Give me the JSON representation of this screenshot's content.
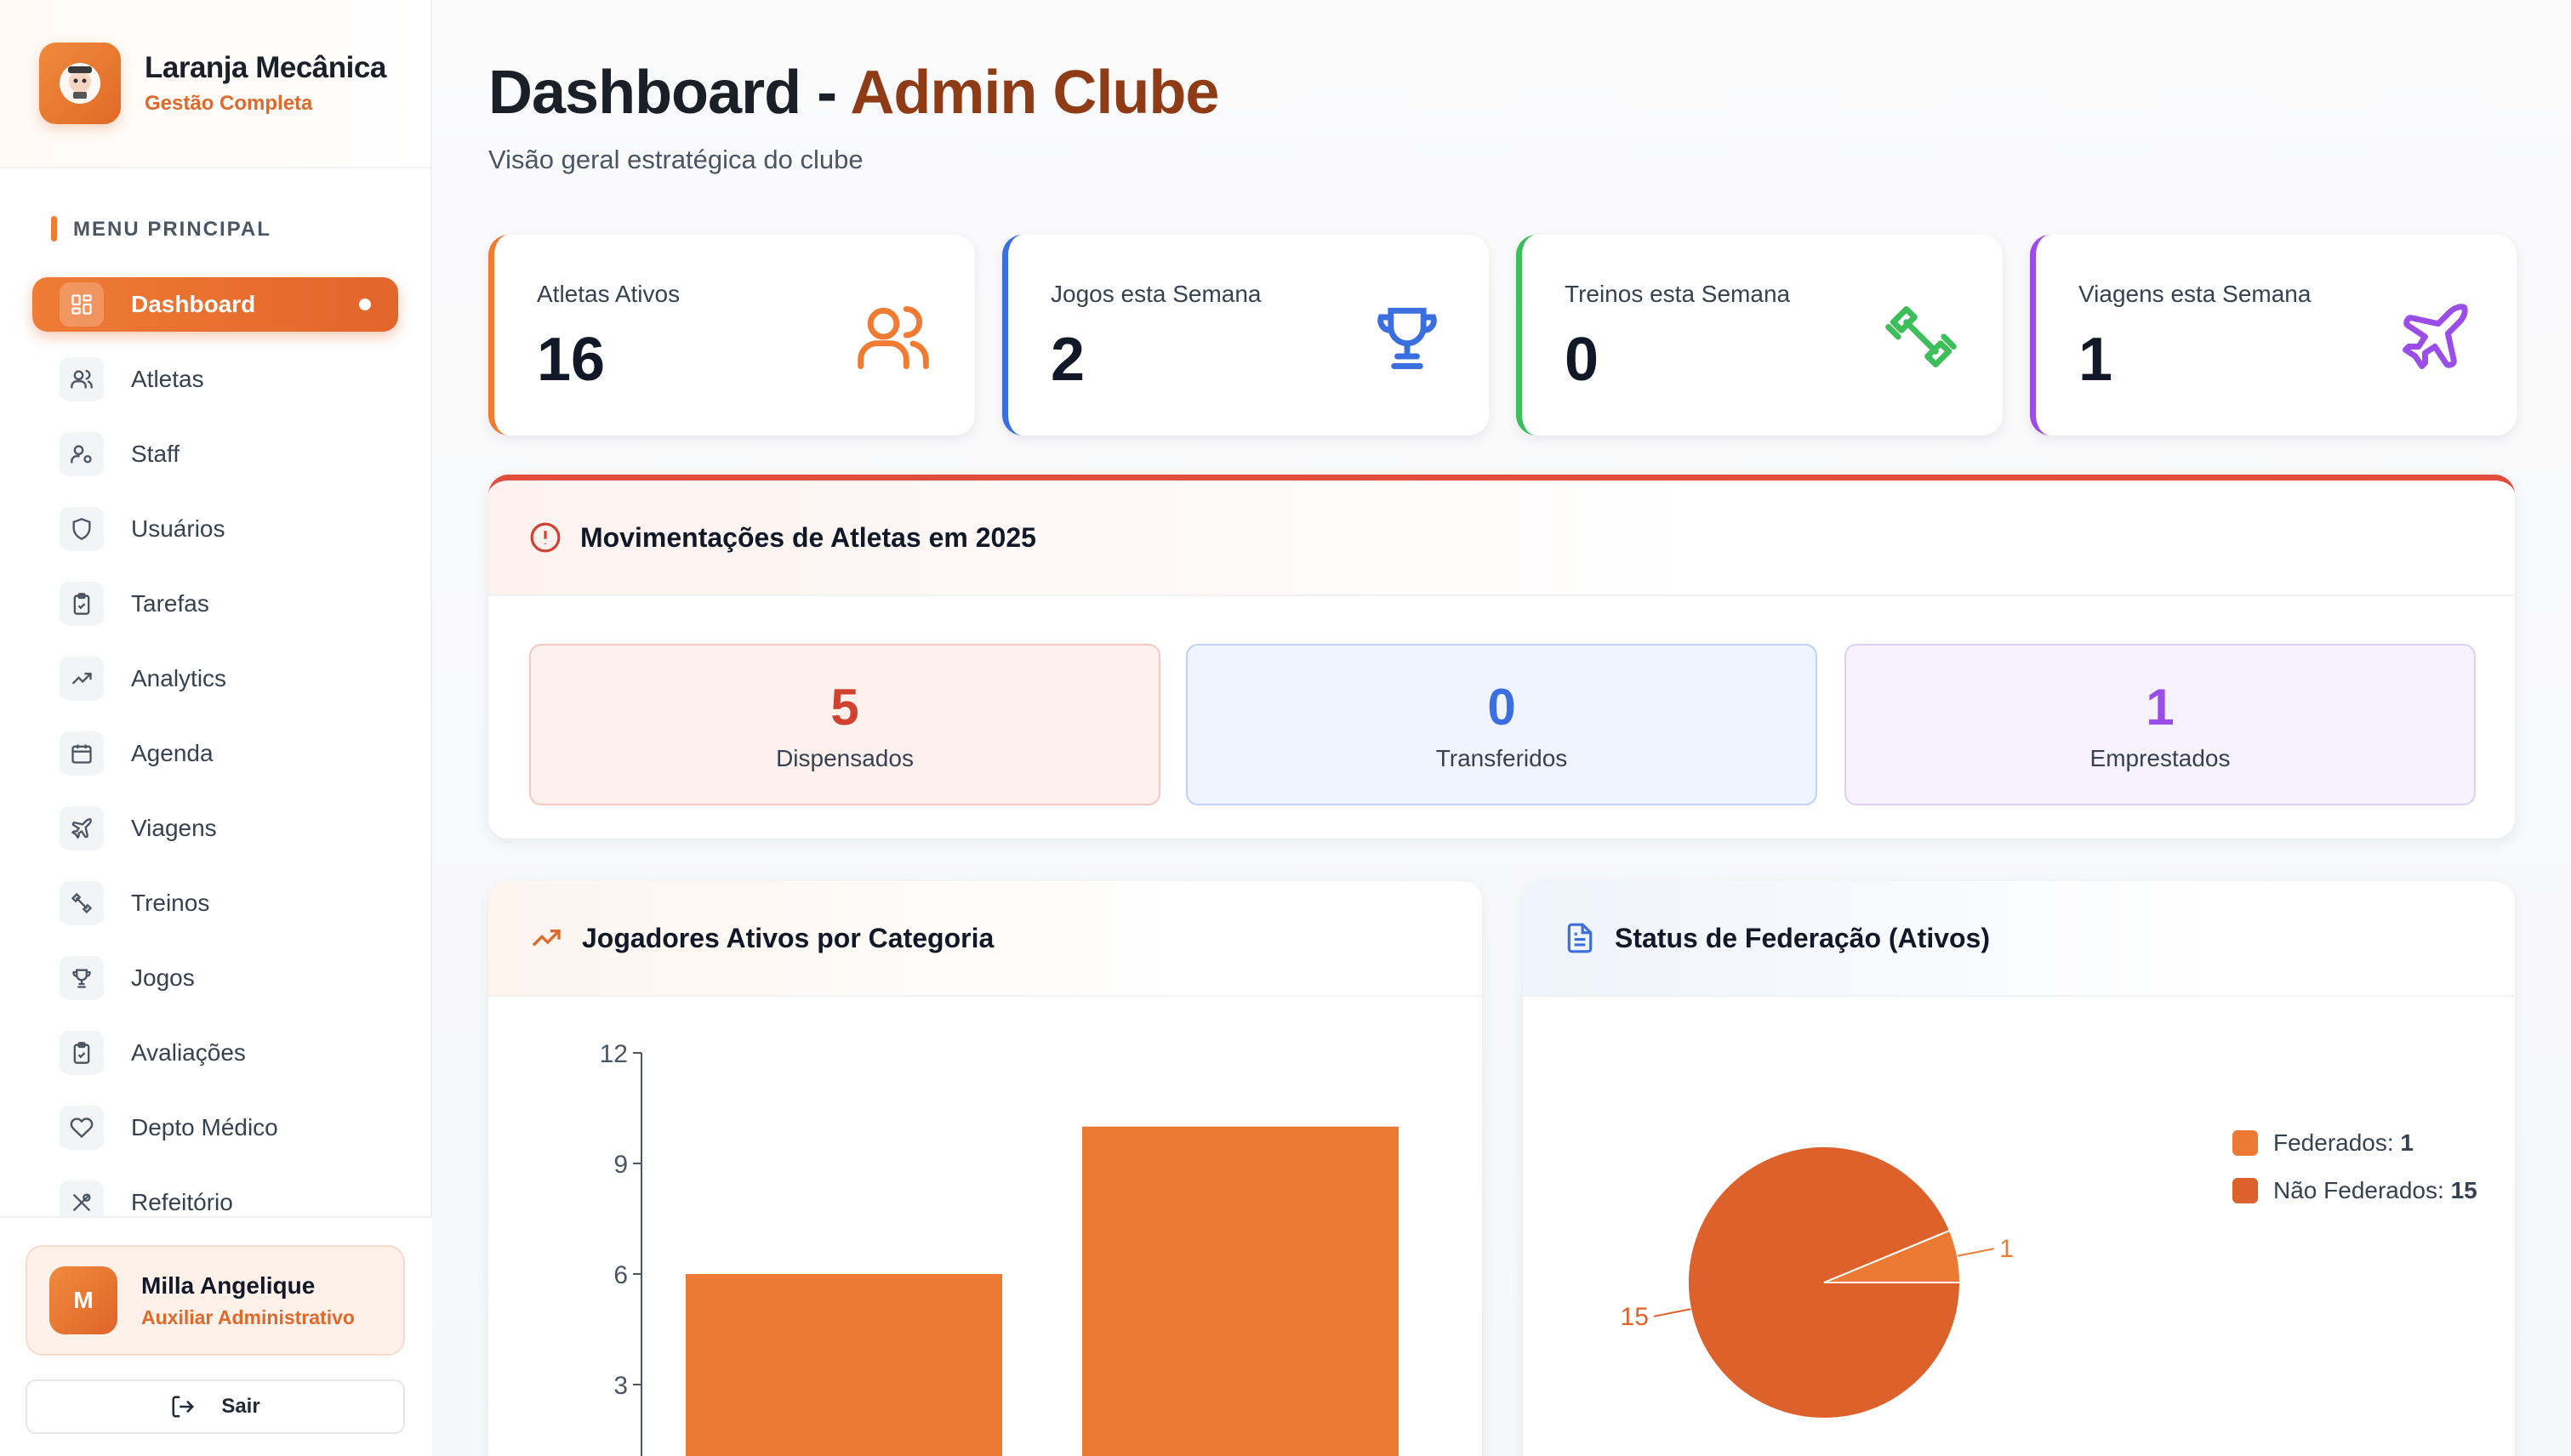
{
  "brand": {
    "title": "Laranja Mecânica",
    "subtitle": "Gestão Completa"
  },
  "sidebar": {
    "menu_heading": "MENU PRINCIPAL",
    "items": [
      {
        "label": "Dashboard",
        "icon": "grid-icon",
        "active": true
      },
      {
        "label": "Atletas",
        "icon": "users-icon"
      },
      {
        "label": "Staff",
        "icon": "user-cog-icon"
      },
      {
        "label": "Usuários",
        "icon": "shield-icon"
      },
      {
        "label": "Tarefas",
        "icon": "clipboard-check-icon"
      },
      {
        "label": "Analytics",
        "icon": "trending-up-icon"
      },
      {
        "label": "Agenda",
        "icon": "calendar-icon"
      },
      {
        "label": "Viagens",
        "icon": "plane-icon"
      },
      {
        "label": "Treinos",
        "icon": "dumbbell-icon"
      },
      {
        "label": "Jogos",
        "icon": "trophy-icon"
      },
      {
        "label": "Avaliações",
        "icon": "clipboard-icon"
      },
      {
        "label": "Depto Médico",
        "icon": "heart-icon"
      },
      {
        "label": "Refeitório",
        "icon": "utensils-icon"
      }
    ],
    "user": {
      "initial": "M",
      "name": "Milla Angelique",
      "role": "Auxiliar Administrativo"
    },
    "logout_label": "Sair"
  },
  "header": {
    "title_prefix": "Dashboard - ",
    "title_accent": "Admin Clube",
    "subtitle": "Visão geral estratégica do clube"
  },
  "stats": [
    {
      "label": "Atletas Ativos",
      "value": "16",
      "color": "#f07b32",
      "icon": "users-icon"
    },
    {
      "label": "Jogos esta Semana",
      "value": "2",
      "color": "#3b6fe0",
      "icon": "trophy-icon"
    },
    {
      "label": "Treinos esta Semana",
      "value": "0",
      "color": "#3cbf5a",
      "icon": "dumbbell-icon"
    },
    {
      "label": "Viagens esta Semana",
      "value": "1",
      "color": "#9b4de8",
      "icon": "plane-icon"
    }
  ],
  "movements": {
    "title": "Movimentações de Atletas em 2025",
    "items": [
      {
        "value": "5",
        "label": "Dispensados",
        "color": "#d2402f",
        "bg": "#fdf1ee",
        "border": "#f5c9c0"
      },
      {
        "value": "0",
        "label": "Transferidos",
        "color": "#3b6fe0",
        "bg": "#eff4fe",
        "border": "#bfd3f6"
      },
      {
        "value": "1",
        "label": "Emprestados",
        "color": "#9b4de8",
        "bg": "#f6f2fe",
        "border": "#ddd0f6"
      }
    ]
  },
  "category_chart": {
    "title": "Jogadores Ativos por Categoria",
    "chart_data": {
      "type": "bar",
      "categories": [
        "",
        ""
      ],
      "values": [
        6,
        10
      ],
      "yticks": [
        3,
        6,
        9,
        12
      ],
      "ylim": [
        0,
        12
      ],
      "color": "#ec7a34"
    }
  },
  "federation_chart": {
    "title": "Status de Federação (Ativos)",
    "chart_data": {
      "type": "pie",
      "slices": [
        {
          "name": "Federados",
          "value": 1,
          "color": "#ec7a34"
        },
        {
          "name": "Não Federados",
          "value": 15,
          "color": "#dd612a"
        }
      ]
    },
    "legend": [
      {
        "label": "Federados: ",
        "value": "1"
      },
      {
        "label": "Não Federados: ",
        "value": "15"
      }
    ]
  }
}
